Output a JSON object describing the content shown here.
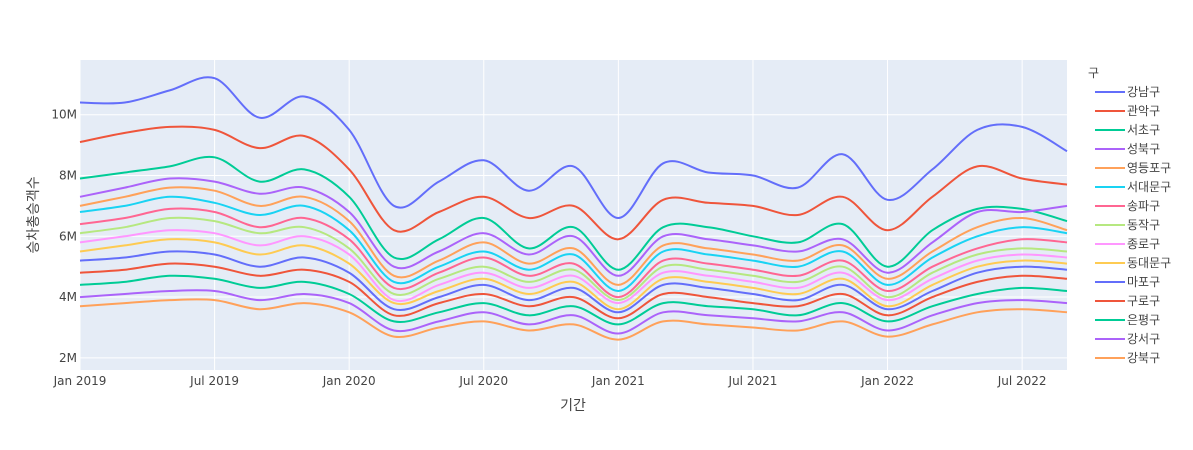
{
  "chart_data": {
    "type": "line",
    "xlabel": "기간",
    "ylabel": "승차총승객수",
    "legend_title": "구",
    "legend_position": "right",
    "grid": true,
    "xlim": [
      "2019-01",
      "2022-09"
    ],
    "ylim": [
      1.6,
      11.8
    ],
    "x_ticks": [
      {
        "date": "2019-01",
        "label": "Jan 2019"
      },
      {
        "date": "2019-07",
        "label": "Jul 2019"
      },
      {
        "date": "2020-01",
        "label": "Jan 2020"
      },
      {
        "date": "2020-07",
        "label": "Jul 2020"
      },
      {
        "date": "2021-01",
        "label": "Jan 2021"
      },
      {
        "date": "2021-07",
        "label": "Jul 2021"
      },
      {
        "date": "2022-01",
        "label": "Jan 2022"
      },
      {
        "date": "2022-07",
        "label": "Jul 2022"
      }
    ],
    "y_ticks": [
      {
        "value": 2,
        "label": "2M"
      },
      {
        "value": 4,
        "label": "4M"
      },
      {
        "value": 6,
        "label": "6M"
      },
      {
        "value": 8,
        "label": "8M"
      },
      {
        "value": 10,
        "label": "10M"
      }
    ],
    "x": [
      "2019-01",
      "2019-03",
      "2019-05",
      "2019-07",
      "2019-09",
      "2019-11",
      "2020-01",
      "2020-03",
      "2020-05",
      "2020-07",
      "2020-09",
      "2020-11",
      "2021-01",
      "2021-03",
      "2021-05",
      "2021-07",
      "2021-09",
      "2021-11",
      "2022-01",
      "2022-03",
      "2022-05",
      "2022-07",
      "2022-09"
    ],
    "series": [
      {
        "name": "강남구",
        "color": "#636efa",
        "values": [
          10.4,
          10.4,
          10.8,
          11.2,
          9.9,
          10.6,
          9.5,
          7.0,
          7.8,
          8.5,
          7.5,
          8.3,
          6.6,
          8.4,
          8.1,
          8.0,
          7.6,
          8.7,
          7.2,
          8.2,
          9.5,
          9.6,
          8.8
        ]
      },
      {
        "name": "관악구",
        "color": "#EF553B",
        "values": [
          9.1,
          9.4,
          9.6,
          9.5,
          8.9,
          9.3,
          8.2,
          6.2,
          6.8,
          7.3,
          6.6,
          7.0,
          5.9,
          7.2,
          7.1,
          7.0,
          6.7,
          7.3,
          6.2,
          7.3,
          8.3,
          7.9,
          7.7
        ]
      },
      {
        "name": "서초구",
        "color": "#00cc96",
        "values": [
          7.9,
          8.1,
          8.3,
          8.6,
          7.8,
          8.2,
          7.3,
          5.3,
          5.9,
          6.6,
          5.6,
          6.3,
          4.9,
          6.3,
          6.3,
          6.0,
          5.8,
          6.4,
          5.0,
          6.2,
          6.9,
          6.9,
          6.5
        ]
      },
      {
        "name": "성북구",
        "color": "#ab63fa",
        "values": [
          7.3,
          7.6,
          7.9,
          7.8,
          7.4,
          7.6,
          6.8,
          5.0,
          5.5,
          6.1,
          5.4,
          6.0,
          4.7,
          6.0,
          5.9,
          5.7,
          5.5,
          5.9,
          4.8,
          5.8,
          6.8,
          6.8,
          7.0
        ]
      },
      {
        "name": "영등포구",
        "color": "#FFA15A",
        "values": [
          7.0,
          7.3,
          7.6,
          7.5,
          7.0,
          7.3,
          6.5,
          4.7,
          5.2,
          5.8,
          5.1,
          5.6,
          4.4,
          5.7,
          5.6,
          5.4,
          5.2,
          5.7,
          4.6,
          5.5,
          6.3,
          6.6,
          6.2
        ]
      },
      {
        "name": "서대문구",
        "color": "#19d3f3",
        "values": [
          6.8,
          7.0,
          7.3,
          7.1,
          6.7,
          7.0,
          6.2,
          4.5,
          5.0,
          5.5,
          4.9,
          5.4,
          4.2,
          5.5,
          5.4,
          5.2,
          5.0,
          5.5,
          4.4,
          5.3,
          6.0,
          6.3,
          6.1
        ]
      },
      {
        "name": "송파구",
        "color": "#FF6692",
        "values": [
          6.4,
          6.6,
          6.9,
          6.8,
          6.3,
          6.6,
          5.9,
          4.3,
          4.8,
          5.3,
          4.7,
          5.1,
          4.0,
          5.2,
          5.1,
          4.9,
          4.7,
          5.2,
          4.2,
          5.0,
          5.6,
          5.9,
          5.8
        ]
      },
      {
        "name": "동작구",
        "color": "#B6E880",
        "values": [
          6.1,
          6.3,
          6.6,
          6.5,
          6.1,
          6.3,
          5.6,
          4.1,
          4.6,
          5.0,
          4.5,
          4.9,
          3.9,
          5.0,
          4.9,
          4.7,
          4.5,
          5.0,
          4.0,
          4.8,
          5.4,
          5.6,
          5.5
        ]
      },
      {
        "name": "종로구",
        "color": "#FF97FF",
        "values": [
          5.8,
          6.0,
          6.2,
          6.1,
          5.7,
          6.0,
          5.4,
          3.9,
          4.4,
          4.8,
          4.3,
          4.7,
          3.8,
          4.8,
          4.7,
          4.5,
          4.3,
          4.8,
          3.9,
          4.6,
          5.2,
          5.4,
          5.3
        ]
      },
      {
        "name": "동대문구",
        "color": "#FECB52",
        "values": [
          5.5,
          5.7,
          5.9,
          5.8,
          5.4,
          5.7,
          5.1,
          3.8,
          4.2,
          4.6,
          4.1,
          4.5,
          3.6,
          4.6,
          4.5,
          4.3,
          4.1,
          4.6,
          3.7,
          4.4,
          5.0,
          5.2,
          5.1
        ]
      },
      {
        "name": "마포구",
        "color": "#636efa",
        "values": [
          5.2,
          5.3,
          5.5,
          5.4,
          5.0,
          5.3,
          4.8,
          3.6,
          4.0,
          4.4,
          3.9,
          4.3,
          3.5,
          4.4,
          4.3,
          4.1,
          3.9,
          4.4,
          3.6,
          4.2,
          4.8,
          5.0,
          4.9
        ]
      },
      {
        "name": "구로구",
        "color": "#EF553B",
        "values": [
          4.8,
          4.9,
          5.1,
          5.0,
          4.7,
          4.9,
          4.5,
          3.4,
          3.8,
          4.1,
          3.7,
          4.0,
          3.3,
          4.1,
          4.0,
          3.8,
          3.7,
          4.1,
          3.4,
          4.0,
          4.5,
          4.7,
          4.6
        ]
      },
      {
        "name": "은평구",
        "color": "#00cc96",
        "values": [
          4.4,
          4.5,
          4.7,
          4.6,
          4.3,
          4.5,
          4.1,
          3.2,
          3.5,
          3.8,
          3.4,
          3.7,
          3.1,
          3.8,
          3.7,
          3.6,
          3.4,
          3.8,
          3.2,
          3.7,
          4.1,
          4.3,
          4.2
        ]
      },
      {
        "name": "강서구",
        "color": "#ab63fa",
        "values": [
          4.0,
          4.1,
          4.2,
          4.2,
          3.9,
          4.1,
          3.8,
          2.9,
          3.2,
          3.5,
          3.1,
          3.4,
          2.8,
          3.5,
          3.4,
          3.3,
          3.2,
          3.5,
          2.9,
          3.4,
          3.8,
          3.9,
          3.8
        ]
      },
      {
        "name": "강북구",
        "color": "#FFA15A",
        "values": [
          3.7,
          3.8,
          3.9,
          3.9,
          3.6,
          3.8,
          3.5,
          2.7,
          3.0,
          3.2,
          2.9,
          3.1,
          2.6,
          3.2,
          3.1,
          3.0,
          2.9,
          3.2,
          2.7,
          3.1,
          3.5,
          3.6,
          3.5
        ]
      }
    ]
  }
}
